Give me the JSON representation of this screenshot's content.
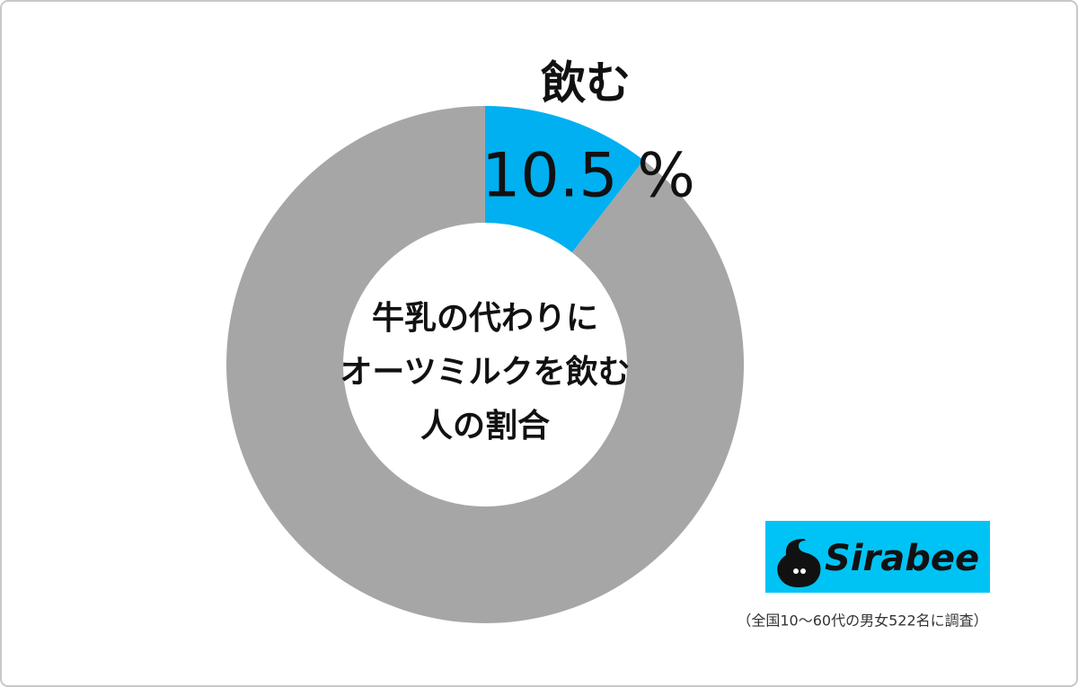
{
  "chart_data": {
    "type": "donut",
    "categories": [
      "飲む",
      null
    ],
    "values": [
      10.5,
      89.5
    ],
    "value_labels": [
      "10.5 %",
      null
    ],
    "colors": [
      "#00b0f0",
      "#a6a6a6"
    ],
    "center_text": [
      "牛乳の代わりに",
      "オーツミルクを飲む",
      "人の割合"
    ],
    "note": "（全国10〜60代の男女522名に調査）",
    "logo": "Sirabee"
  }
}
